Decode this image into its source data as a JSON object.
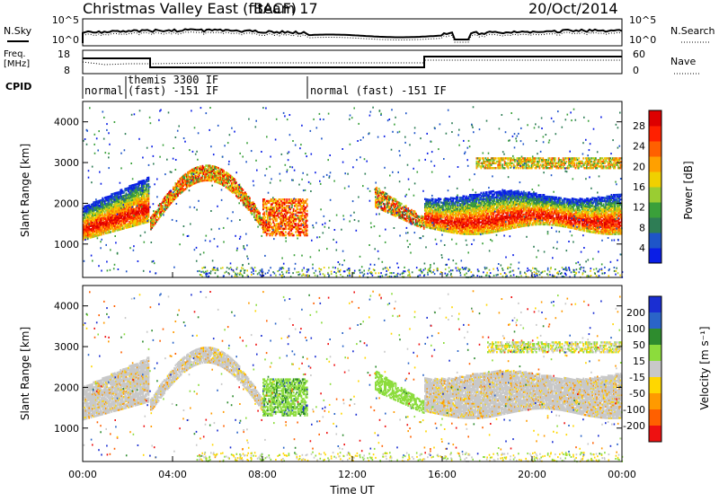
{
  "header": {
    "title": "Christmas Valley East (fitACF)",
    "beam": "Beam 17",
    "date": "20/Oct/2014"
  },
  "noise_panel": {
    "left_label": "N.Sky",
    "left_ticks": [
      "10^5",
      "10^0"
    ],
    "right_label": "N.Search",
    "right_ticks": [
      "10^5",
      "10^0"
    ]
  },
  "freq_panel": {
    "left_label_1": "Freq.",
    "left_label_2": "[MHz]",
    "left_ticks": [
      "18",
      "8"
    ],
    "right_label": "Nave",
    "right_ticks": [
      "60",
      "0"
    ]
  },
  "cpid": {
    "label": "CPID",
    "segments": [
      "normal",
      "themis 3300 IF",
      "(fast) -151 IF",
      "normal (fast) -151 IF"
    ]
  },
  "colors": {
    "power_scale": [
      "#0a1ee6",
      "#1e55c8",
      "#2e7d55",
      "#3aa03a",
      "#9acd32",
      "#f0d000",
      "#ffa000",
      "#ff6000",
      "#ff2000",
      "#dd0000"
    ],
    "velocity_scale": [
      "#1a2ed2",
      "#2a64c8",
      "#2e8c2e",
      "#8cdc3c",
      "#c8c8c8",
      "#ffd700",
      "#ff9a00",
      "#ff6000",
      "#ee1111"
    ]
  },
  "chart_data": [
    {
      "type": "heatmap",
      "title": "",
      "xlabel": "",
      "ylabel": "Slant Range [km]",
      "xlim": [
        "00:00",
        "24:00"
      ],
      "ylim": [
        180,
        4500
      ],
      "yticks": [
        "1000",
        "2000",
        "3000",
        "4000"
      ],
      "colorbar": {
        "label": "Power [dB]",
        "ticks": [
          "4",
          "8",
          "12",
          "16",
          "20",
          "24",
          "28"
        ],
        "range": [
          0,
          30
        ]
      }
    },
    {
      "type": "heatmap",
      "title": "",
      "xlabel": "Time UT",
      "ylabel": "Slant Range [km]",
      "xlim": [
        "00:00",
        "24:00"
      ],
      "ylim": [
        180,
        4500
      ],
      "xticks": [
        "00:00",
        "04:00",
        "08:00",
        "12:00",
        "16:00",
        "20:00",
        "00:00"
      ],
      "yticks": [
        "1000",
        "2000",
        "3000",
        "4000"
      ],
      "colorbar": {
        "label": "Velocity [m s⁻¹]",
        "ticks": [
          "200",
          "100",
          "50",
          "15",
          "-15",
          "-50",
          "-100",
          "-200"
        ],
        "range": [
          -250,
          250
        ]
      }
    }
  ]
}
